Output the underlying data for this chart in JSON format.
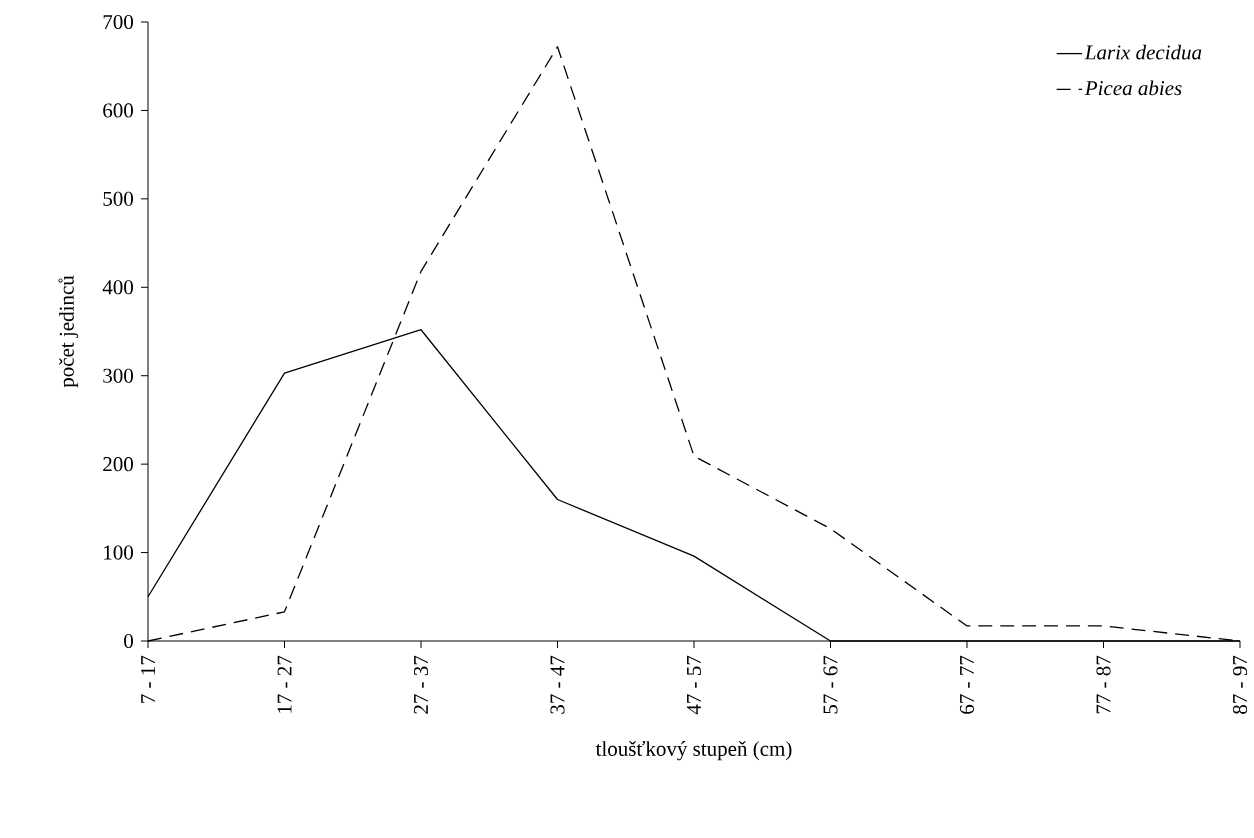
{
  "chart_data": {
    "type": "line",
    "xlabel": "tloušťkový stupeň (cm)",
    "ylabel": "počet jedinců",
    "categories": [
      "7 - 17",
      "17 - 27",
      "27 - 37",
      "37 - 47",
      "47 - 57",
      "57 - 67",
      "67 - 77",
      "77 - 87",
      "87 - 97"
    ],
    "series": [
      {
        "name": "Larix decidua",
        "color": "#000000",
        "line_style": "solid",
        "values": [
          50,
          303,
          352,
          160,
          96,
          0,
          0,
          0,
          0
        ]
      },
      {
        "name": "Picea abies",
        "color": "#000000",
        "line_style": "dashed",
        "values": [
          0,
          33,
          418,
          672,
          209,
          127,
          17,
          17,
          0
        ]
      }
    ],
    "ylim": [
      0,
      700
    ],
    "yticks": [
      0,
      100,
      200,
      300,
      400,
      500,
      600,
      700
    ],
    "grid": false,
    "legend": "top right"
  }
}
